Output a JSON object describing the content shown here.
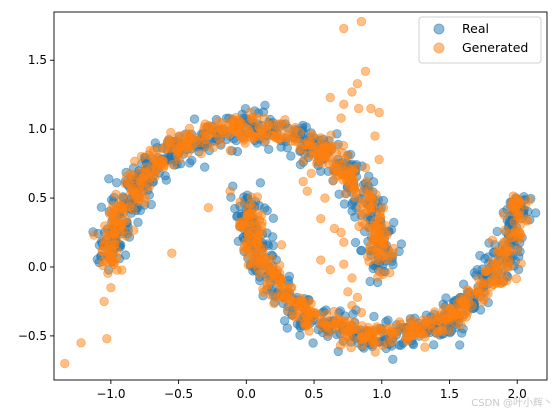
{
  "watermark": "CSDN @叶小辉丶",
  "chart_data": {
    "type": "scatter",
    "title": "",
    "xlabel": "",
    "ylabel": "",
    "xlim": [
      -1.42,
      2.22
    ],
    "ylim": [
      -0.82,
      1.85
    ],
    "xticks": [
      -1.0,
      -0.5,
      0.0,
      0.5,
      1.0,
      1.5,
      2.0
    ],
    "xtick_labels": [
      "−1.0",
      "−0.5",
      "0.0",
      "0.5",
      "1.0",
      "1.5",
      "2.0"
    ],
    "yticks": [
      -0.5,
      0.0,
      0.5,
      1.0,
      1.5
    ],
    "ytick_labels": [
      "−0.5",
      "0.0",
      "0.5",
      "1.0",
      "1.5"
    ],
    "grid": false,
    "legend_position": "top-right",
    "series": [
      {
        "name": "Real",
        "color": "#1f77b4",
        "alpha": 0.5,
        "distribution": "two interleaving moons: upper arc centered (0,0) radius 1 spanning x -1..1; lower arc centered (1,0.5) radius 1 spanning x 0..2; Gaussian noise ~0.06",
        "n_points": 1000
      },
      {
        "name": "Generated",
        "color": "#ff7f0e",
        "alpha": 0.5,
        "distribution": "mostly follows both moons with outliers",
        "n_points": 900,
        "outliers": [
          [
            -1.34,
            -0.7
          ],
          [
            -1.22,
            -0.55
          ],
          [
            -1.03,
            -0.52
          ],
          [
            -1.05,
            -0.25
          ],
          [
            -1.0,
            -0.15
          ],
          [
            -0.55,
            0.1
          ],
          [
            -0.28,
            0.43
          ],
          [
            -0.12,
            0.55
          ],
          [
            0.72,
            1.73
          ],
          [
            0.85,
            1.78
          ],
          [
            0.88,
            1.42
          ],
          [
            0.82,
            1.33
          ],
          [
            0.78,
            1.27
          ],
          [
            0.72,
            1.18
          ],
          [
            0.83,
            1.15
          ],
          [
            0.7,
            1.08
          ],
          [
            0.92,
            1.15
          ],
          [
            0.98,
            1.12
          ],
          [
            0.62,
            1.23
          ],
          [
            0.95,
            0.95
          ],
          [
            0.98,
            0.78
          ],
          [
            0.88,
            0.72
          ],
          [
            0.52,
            0.75
          ],
          [
            0.48,
            0.68
          ],
          [
            0.42,
            0.62
          ],
          [
            0.58,
            0.5
          ],
          [
            0.45,
            0.55
          ],
          [
            0.55,
            0.35
          ],
          [
            0.65,
            0.28
          ],
          [
            0.7,
            0.25
          ],
          [
            0.72,
            0.18
          ],
          [
            0.55,
            0.05
          ],
          [
            0.62,
            -0.02
          ],
          [
            0.72,
            0.02
          ],
          [
            0.78,
            -0.08
          ],
          [
            0.75,
            -0.18
          ],
          [
            0.82,
            -0.22
          ],
          [
            0.85,
            -0.33
          ],
          [
            0.78,
            -0.28
          ]
        ]
      }
    ]
  }
}
